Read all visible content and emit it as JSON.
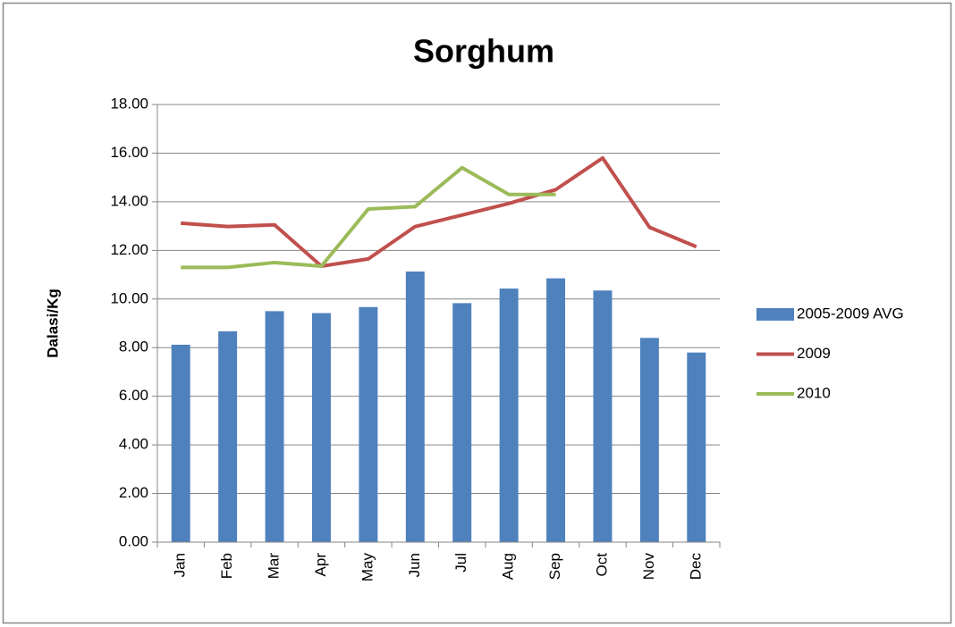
{
  "chart_data": {
    "type": "bar",
    "title": "Sorghum",
    "y_label": "Dalasi/Kg",
    "categories": [
      "Jan",
      "Feb",
      "Mar",
      "Apr",
      "May",
      "Jun",
      "Jul",
      "Aug",
      "Sep",
      "Oct",
      "Nov",
      "Dec"
    ],
    "series": [
      {
        "name": "2005-2009 AVG",
        "type": "bar",
        "color": "#4f81bd",
        "values": [
          8.12,
          8.67,
          9.5,
          9.42,
          9.67,
          11.13,
          9.83,
          10.43,
          10.85,
          10.35,
          8.4,
          7.8
        ]
      },
      {
        "name": "2009",
        "type": "line",
        "color": "#c0504d",
        "values": [
          13.12,
          12.98,
          13.05,
          11.35,
          11.65,
          12.98,
          13.45,
          13.93,
          14.5,
          15.8,
          12.95,
          12.15
        ]
      },
      {
        "name": "2010",
        "type": "line",
        "color": "#9bbb59",
        "values": [
          11.3,
          11.3,
          11.5,
          11.35,
          13.7,
          13.8,
          15.4,
          14.3,
          14.3,
          null,
          null,
          null
        ]
      }
    ],
    "ylim": [
      0,
      18
    ],
    "yticks": [
      {
        "value": 0,
        "label": "0.00"
      },
      {
        "value": 2,
        "label": "2.00"
      },
      {
        "value": 4,
        "label": "4.00"
      },
      {
        "value": 6,
        "label": "6.00"
      },
      {
        "value": 8,
        "label": "8.00"
      },
      {
        "value": 10,
        "label": "10.00"
      },
      {
        "value": 12,
        "label": "12.00"
      },
      {
        "value": 14,
        "label": "14.00"
      },
      {
        "value": 16,
        "label": "16.00"
      },
      {
        "value": 18,
        "label": "18.00"
      }
    ],
    "grid": true,
    "legend": "right"
  }
}
